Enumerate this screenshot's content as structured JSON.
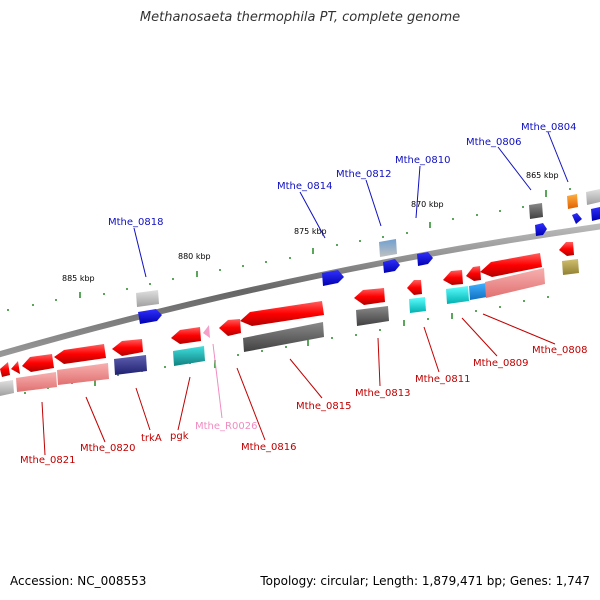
{
  "title": "Methanosaeta thermophila PT, complete genome",
  "accession": "Accession: NC_008553",
  "summary": "Topology: circular; Length: 1,879,471 bp; Genes: 1,747",
  "scale_labels": [
    "885 kbp",
    "880 kbp",
    "875 kbp",
    "870 kbp",
    "865 kbp"
  ],
  "top_labels": [
    "Mthe_0818",
    "Mthe_0814",
    "Mthe_0812",
    "Mthe_0810",
    "Mthe_0806",
    "Mthe_0804"
  ],
  "bottom_labels": [
    "Mthe_0821",
    "Mthe_0820",
    "trkA",
    "pgk",
    "Mthe_R0026",
    "Mthe_0816",
    "Mthe_0815",
    "Mthe_0813",
    "Mthe_0811",
    "Mthe_0809",
    "Mthe_0808"
  ],
  "colors": {
    "gene_red": "#ff0000",
    "gene_pink": "#f08888",
    "gene_blue": "#0000ee",
    "gene_gray": "#666666",
    "gene_cyan": "#00dddd",
    "gene_purple": "#3c3c90",
    "gene_orange": "#ff8800",
    "gene_olive": "#b0a050",
    "rna_pink": "#f4a0c8",
    "backbone": "#777777",
    "tick_green": "#228822",
    "label_blue": "#1010c0",
    "label_red": "#c00000"
  }
}
